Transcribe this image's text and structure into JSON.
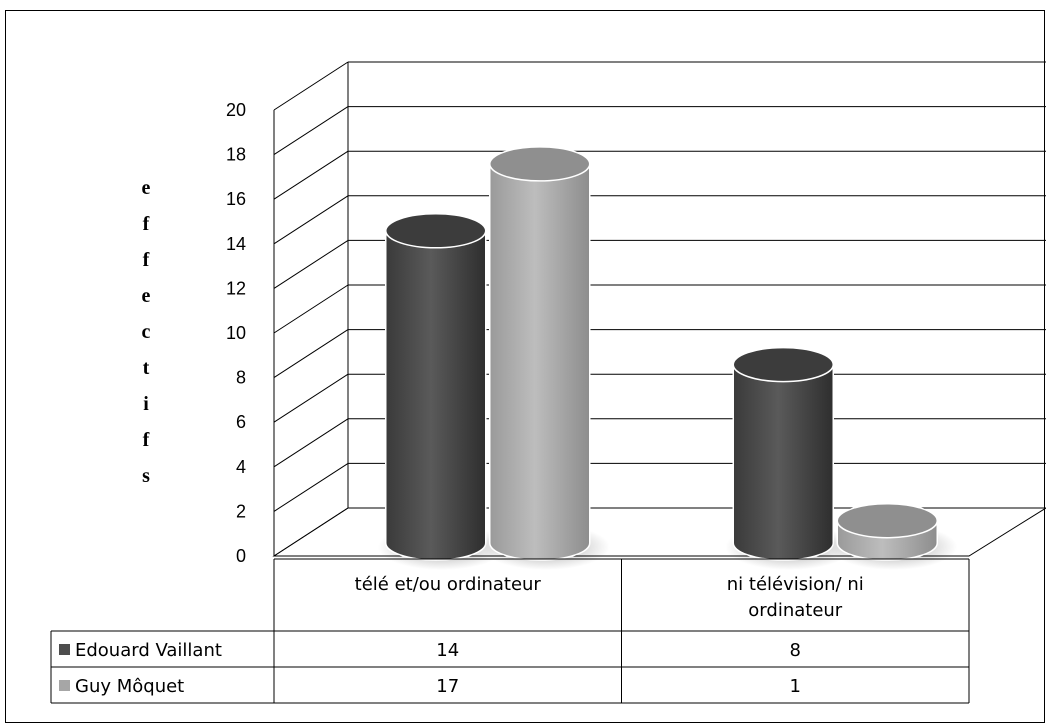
{
  "chart_data": {
    "type": "bar",
    "ylabel": "effectifs",
    "ylim": [
      0,
      20
    ],
    "yticks": [
      "0",
      "2",
      "4",
      "6",
      "8",
      "10",
      "12",
      "14",
      "16",
      "18",
      "20"
    ],
    "categories": [
      "télé et/ou ordinateur",
      "ni télévision/ ni ordinateur"
    ],
    "series": [
      {
        "name": "Edouard Vaillant",
        "values": [
          14,
          8
        ],
        "value_labels": [
          "14",
          "8"
        ],
        "color": "#4d4d4d"
      },
      {
        "name": "Guy Môquet",
        "values": [
          17,
          1
        ],
        "value_labels": [
          "17",
          "1"
        ],
        "color": "#a6a6a6"
      }
    ],
    "grid": true,
    "legend": "data-table",
    "style": "3d-cylinder"
  }
}
